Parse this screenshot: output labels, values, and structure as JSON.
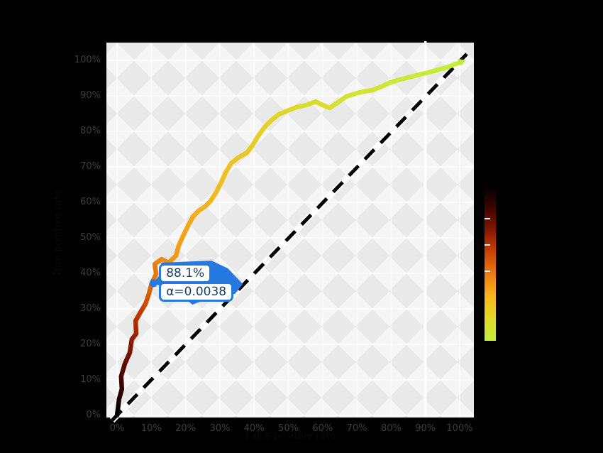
{
  "accent": "#2679e0",
  "chart_data": {
    "type": "line",
    "x_axis": {
      "title": "False positive rate",
      "tick_labels": [
        "0%",
        "10%",
        "20%",
        "30%",
        "40%",
        "50%",
        "60%",
        "70%",
        "80%",
        "90%",
        "100%"
      ],
      "range": [
        0,
        100
      ],
      "highlighted_gridline": 90
    },
    "y_axis": {
      "title": "True positive rate",
      "tick_labels": [
        "0%",
        "10%",
        "20%",
        "30%",
        "40%",
        "50%",
        "60%",
        "70%",
        "80%",
        "90%",
        "100%"
      ],
      "range": [
        0,
        100
      ]
    },
    "grid": true,
    "legend_position": "right-colorbar",
    "series": [
      {
        "name": "roc-curve",
        "arrow_end": true,
        "points": [
          [
            0,
            0
          ],
          [
            0.6,
            4.6
          ],
          [
            1.4,
            7.4
          ],
          [
            1.2,
            11
          ],
          [
            2.3,
            14.6
          ],
          [
            3.7,
            17.6
          ],
          [
            4.3,
            21.4
          ],
          [
            5.6,
            23
          ],
          [
            5.4,
            26.6
          ],
          [
            6.8,
            29
          ],
          [
            8.3,
            31.4
          ],
          [
            9.3,
            34.2
          ],
          [
            10.1,
            37.2
          ],
          [
            11.4,
            39.8
          ],
          [
            11,
            42.6
          ],
          [
            13,
            44
          ],
          [
            15.1,
            43
          ],
          [
            17.2,
            45
          ],
          [
            18,
            47.8
          ],
          [
            19.3,
            50.6
          ],
          [
            20.7,
            53.4
          ],
          [
            22.2,
            56
          ],
          [
            23.8,
            57.6
          ],
          [
            25.9,
            59
          ],
          [
            27.3,
            60.4
          ],
          [
            29,
            63
          ],
          [
            30.4,
            65.6
          ],
          [
            31.7,
            68.4
          ],
          [
            33.3,
            71
          ],
          [
            35.4,
            72.6
          ],
          [
            37.9,
            74
          ],
          [
            39.5,
            76
          ],
          [
            41,
            78.4
          ],
          [
            42.9,
            81
          ],
          [
            44.9,
            83
          ],
          [
            47.2,
            84.8
          ],
          [
            49.7,
            85.8
          ],
          [
            52.4,
            86.8
          ],
          [
            55.3,
            87.4
          ],
          [
            58,
            88.4
          ],
          [
            60,
            87.4
          ],
          [
            62.1,
            86.6
          ],
          [
            64.2,
            88
          ],
          [
            66.9,
            89.8
          ],
          [
            69.4,
            90.6
          ],
          [
            71.8,
            91.2
          ],
          [
            74.5,
            91.6
          ],
          [
            77.2,
            92.6
          ],
          [
            79.3,
            93.6
          ],
          [
            81.8,
            94.4
          ],
          [
            84.3,
            95
          ],
          [
            86.7,
            95.6
          ],
          [
            89.2,
            96.2
          ],
          [
            91.7,
            96.8
          ],
          [
            93.8,
            97.4
          ],
          [
            96.3,
            98
          ],
          [
            98.3,
            98.8
          ],
          [
            100,
            99.4
          ]
        ]
      }
    ],
    "reference_line": {
      "from": [
        0,
        0
      ],
      "to": [
        100,
        100
      ],
      "style": "dashed",
      "color": "#000000",
      "casing_color": "#ffffff"
    },
    "hover_label": {
      "x": 10.6,
      "y": 37.2,
      "lines": [
        "88.1%",
        "α=0.0038"
      ],
      "accent_color": "#2679e0",
      "text_color": "#1c3e63",
      "bg_color": "#ffffff"
    },
    "curve_gradient_stops": [
      [
        0,
        "#000000"
      ],
      [
        0.05,
        "#3a0400"
      ],
      [
        0.11,
        "#7a1400"
      ],
      [
        0.17,
        "#b83400"
      ],
      [
        0.23,
        "#e06708"
      ],
      [
        0.31,
        "#f09b18"
      ],
      [
        0.46,
        "#f2bb20"
      ],
      [
        0.62,
        "#e6d026"
      ],
      [
        0.8,
        "#d2e430"
      ],
      [
        1,
        "#c2ee3a"
      ]
    ],
    "colorbar": {
      "orientation": "vertical",
      "stops": [
        "#000000",
        "#3f0600",
        "#8a1600",
        "#cc4303",
        "#ee7d10",
        "#f7b71d",
        "#e3da2b",
        "#c2ee3a"
      ],
      "tick_color": "#ffffff"
    }
  }
}
